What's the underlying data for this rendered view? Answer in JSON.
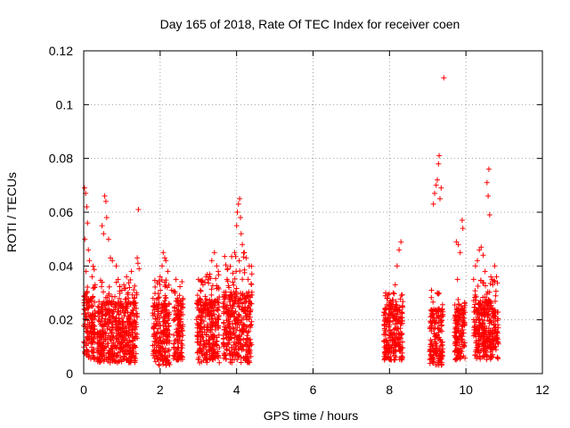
{
  "chart_data": {
    "type": "scatter",
    "title": "Day 165 of 2018, Rate Of TEC Index for receiver coen",
    "xlabel": "GPS time / hours",
    "ylabel": "ROTI / TECUs",
    "xlim": [
      0,
      12
    ],
    "ylim": [
      0,
      0.12
    ],
    "xticks": [
      0,
      2,
      4,
      6,
      8,
      10,
      12
    ],
    "xtick_labels": [
      "0",
      "2",
      "4",
      "6",
      "8",
      "10",
      "12"
    ],
    "yticks": [
      0,
      0.02,
      0.04,
      0.06,
      0.08,
      0.1,
      0.12
    ],
    "ytick_labels": [
      "0",
      "0.02",
      "0.04",
      "0.06",
      "0.08",
      "0.1",
      "0.12"
    ],
    "grid": true,
    "marker": "+",
    "color": "#ff0000",
    "clusters": [
      {
        "x_range": [
          0.0,
          0.3
        ],
        "y_range": [
          0.005,
          0.04
        ]
      },
      {
        "x_range": [
          0.35,
          1.4
        ],
        "y_range": [
          0.004,
          0.035
        ]
      },
      {
        "x_range": [
          1.8,
          2.25
        ],
        "y_range": [
          0.003,
          0.035
        ]
      },
      {
        "x_range": [
          2.35,
          2.6
        ],
        "y_range": [
          0.005,
          0.035
        ]
      },
      {
        "x_range": [
          2.95,
          3.55
        ],
        "y_range": [
          0.004,
          0.038
        ]
      },
      {
        "x_range": [
          3.65,
          4.4
        ],
        "y_range": [
          0.004,
          0.045
        ]
      },
      {
        "x_range": [
          7.85,
          8.35
        ],
        "y_range": [
          0.005,
          0.03
        ]
      },
      {
        "x_range": [
          9.05,
          9.4
        ],
        "y_range": [
          0.003,
          0.03
        ]
      },
      {
        "x_range": [
          9.7,
          9.98
        ],
        "y_range": [
          0.005,
          0.03
        ]
      },
      {
        "x_range": [
          10.2,
          10.85
        ],
        "y_range": [
          0.005,
          0.035
        ]
      }
    ],
    "series": [
      {
        "name": "ROTI",
        "points": [
          [
            0.02,
            0.069
          ],
          [
            0.05,
            0.067
          ],
          [
            0.08,
            0.062
          ],
          [
            0.1,
            0.056
          ],
          [
            0.03,
            0.05
          ],
          [
            0.06,
            0.038
          ],
          [
            0.12,
            0.046
          ],
          [
            0.15,
            0.042
          ],
          [
            0.22,
            0.036
          ],
          [
            0.28,
            0.032
          ],
          [
            0.48,
            0.055
          ],
          [
            0.52,
            0.052
          ],
          [
            0.55,
            0.066
          ],
          [
            0.58,
            0.064
          ],
          [
            0.6,
            0.058
          ],
          [
            0.65,
            0.05
          ],
          [
            0.7,
            0.043
          ],
          [
            0.75,
            0.042
          ],
          [
            0.85,
            0.04
          ],
          [
            0.9,
            0.035
          ],
          [
            1.0,
            0.031
          ],
          [
            1.05,
            0.033
          ],
          [
            1.12,
            0.036
          ],
          [
            1.2,
            0.032
          ],
          [
            1.25,
            0.038
          ],
          [
            1.32,
            0.028
          ],
          [
            1.43,
            0.061
          ],
          [
            1.4,
            0.043
          ],
          [
            1.42,
            0.041
          ],
          [
            1.45,
            0.039
          ],
          [
            1.38,
            0.03
          ],
          [
            2.0,
            0.036
          ],
          [
            2.05,
            0.04
          ],
          [
            2.08,
            0.045
          ],
          [
            2.12,
            0.043
          ],
          [
            2.15,
            0.042
          ],
          [
            1.95,
            0.028
          ],
          [
            2.2,
            0.038
          ],
          [
            2.3,
            0.031
          ],
          [
            2.45,
            0.028
          ],
          [
            2.55,
            0.025
          ],
          [
            3.0,
            0.035
          ],
          [
            3.05,
            0.031
          ],
          [
            3.12,
            0.033
          ],
          [
            3.2,
            0.036
          ],
          [
            3.28,
            0.036
          ],
          [
            3.35,
            0.042
          ],
          [
            3.42,
            0.045
          ],
          [
            3.48,
            0.04
          ],
          [
            3.52,
            0.038
          ],
          [
            3.75,
            0.035
          ],
          [
            3.8,
            0.032
          ],
          [
            3.9,
            0.034
          ],
          [
            3.95,
            0.045
          ],
          [
            4.0,
            0.055
          ],
          [
            4.02,
            0.06
          ],
          [
            4.05,
            0.063
          ],
          [
            4.08,
            0.065
          ],
          [
            4.1,
            0.058
          ],
          [
            4.12,
            0.052
          ],
          [
            4.15,
            0.048
          ],
          [
            4.2,
            0.045
          ],
          [
            4.25,
            0.043
          ],
          [
            4.3,
            0.035
          ],
          [
            7.9,
            0.03
          ],
          [
            7.95,
            0.028
          ],
          [
            8.02,
            0.027
          ],
          [
            8.1,
            0.03
          ],
          [
            8.15,
            0.033
          ],
          [
            8.2,
            0.04
          ],
          [
            8.25,
            0.046
          ],
          [
            8.3,
            0.049
          ],
          [
            9.15,
            0.063
          ],
          [
            9.18,
            0.067
          ],
          [
            9.22,
            0.07
          ],
          [
            9.25,
            0.072
          ],
          [
            9.28,
            0.078
          ],
          [
            9.3,
            0.081
          ],
          [
            9.32,
            0.065
          ],
          [
            9.35,
            0.069
          ],
          [
            9.1,
            0.031
          ],
          [
            9.25,
            0.03
          ],
          [
            9.42,
            0.11
          ],
          [
            9.75,
            0.049
          ],
          [
            9.8,
            0.048
          ],
          [
            9.85,
            0.045
          ],
          [
            9.9,
            0.057
          ],
          [
            9.92,
            0.054
          ],
          [
            9.78,
            0.035
          ],
          [
            10.2,
            0.035
          ],
          [
            10.25,
            0.04
          ],
          [
            10.3,
            0.042
          ],
          [
            10.35,
            0.046
          ],
          [
            10.4,
            0.047
          ],
          [
            10.45,
            0.044
          ],
          [
            10.5,
            0.038
          ],
          [
            10.55,
            0.071
          ],
          [
            10.58,
            0.066
          ],
          [
            10.6,
            0.076
          ],
          [
            10.62,
            0.059
          ],
          [
            10.65,
            0.036
          ],
          [
            10.7,
            0.033
          ],
          [
            10.75,
            0.04
          ],
          [
            10.8,
            0.036
          ]
        ]
      }
    ]
  }
}
